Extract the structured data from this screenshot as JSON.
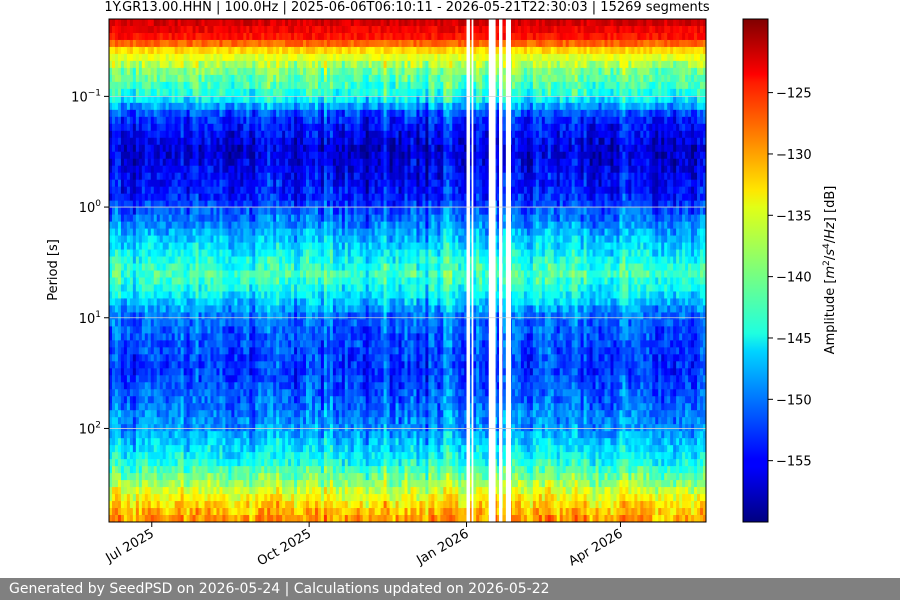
{
  "title": "1Y.GR13.00.HHN | 100.0Hz | 2025-06-06T06:10:11 - 2026-05-21T22:30:03 | 15269 segments",
  "footer": "Generated by SeedPSD on 2026-05-24 | Calculations updated on 2026-05-22",
  "chart_data": {
    "type": "heatmap",
    "title": "1Y.GR13.00.HHN | 100.0Hz | 2025-06-06T06:10:11 - 2026-05-21T22:30:03 | 15269 segments",
    "xlabel": "",
    "ylabel": "Period [s]",
    "xlim": [
      "2025-06-06",
      "2026-05-21"
    ],
    "ylim": [
      0.02,
      700
    ],
    "y_scale": "log",
    "y_inverted": true,
    "grid": true,
    "x_ticks": [
      {
        "value": "2025-07-01",
        "label": "Jul 2025"
      },
      {
        "value": "2025-10-01",
        "label": "Oct 2025"
      },
      {
        "value": "2026-01-01",
        "label": "Jan 2026"
      },
      {
        "value": "2026-04-01",
        "label": "Apr 2026"
      }
    ],
    "y_ticks": [
      {
        "value": 0.1,
        "label": "10^−1"
      },
      {
        "value": 1,
        "label": "10^0"
      },
      {
        "value": 10,
        "label": "10^1"
      },
      {
        "value": 100,
        "label": "10^2"
      }
    ],
    "colorbar": {
      "label": "Amplitude [m^2/s^4/Hz] [dB]",
      "colormap": "jet",
      "range": [
        -160,
        -119
      ],
      "ticks": [
        -125,
        -130,
        -135,
        -140,
        -145,
        -150,
        -155
      ]
    },
    "data_gaps": [
      {
        "start": "2026-01-01",
        "end": "2026-01-03"
      },
      {
        "start": "2026-01-04",
        "end": "2026-01-05"
      },
      {
        "start": "2026-01-14",
        "end": "2026-01-18"
      },
      {
        "start": "2026-01-20",
        "end": "2026-01-22"
      },
      {
        "start": "2026-01-24",
        "end": "2026-01-27"
      }
    ],
    "amplitude_profile_by_period": [
      {
        "period": 0.02,
        "db": -122
      },
      {
        "period": 0.03,
        "db": -125
      },
      {
        "period": 0.04,
        "db": -134
      },
      {
        "period": 0.06,
        "db": -140
      },
      {
        "period": 0.1,
        "db": -144
      },
      {
        "period": 0.15,
        "db": -153
      },
      {
        "period": 0.3,
        "db": -157
      },
      {
        "period": 0.8,
        "db": -154
      },
      {
        "period": 2,
        "db": -147
      },
      {
        "period": 4,
        "db": -142
      },
      {
        "period": 6,
        "db": -145
      },
      {
        "period": 10,
        "db": -151
      },
      {
        "period": 30,
        "db": -153
      },
      {
        "period": 100,
        "db": -149
      },
      {
        "period": 200,
        "db": -144
      },
      {
        "period": 300,
        "db": -139
      },
      {
        "period": 450,
        "db": -134
      },
      {
        "period": 700,
        "db": -130
      }
    ]
  }
}
